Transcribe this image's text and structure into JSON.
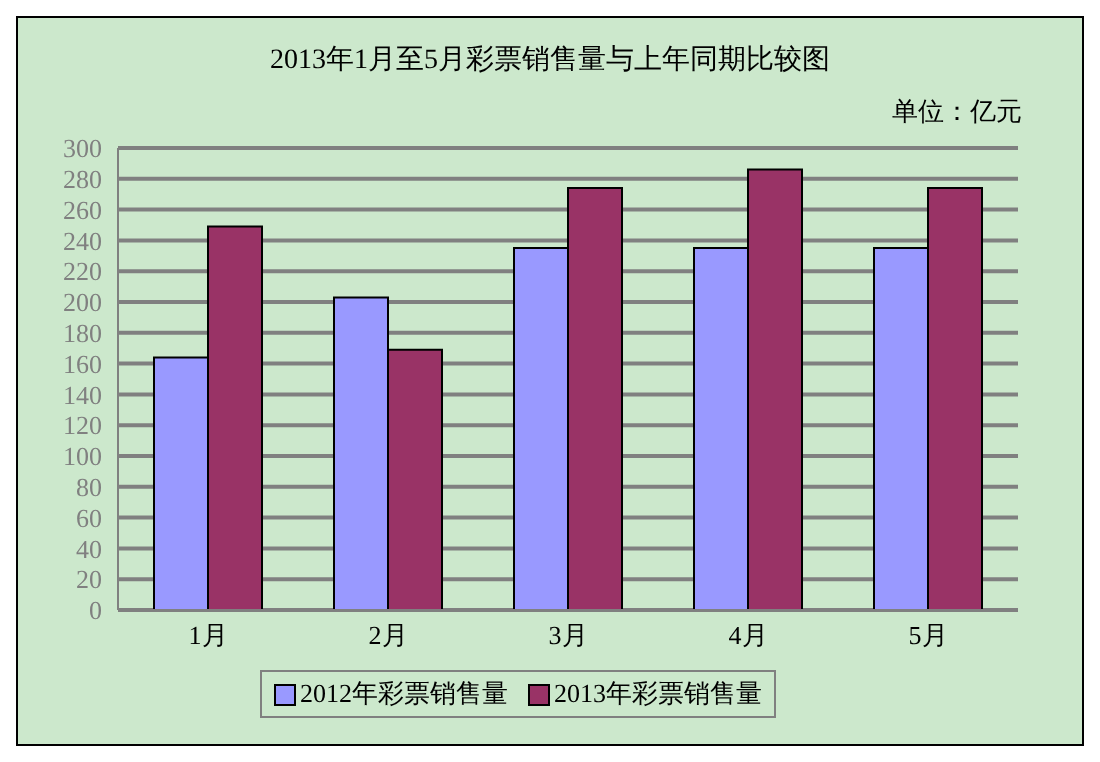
{
  "chart_data": {
    "type": "bar",
    "title": "2013年1月至5月彩票销售量与上年同期比较图",
    "subtitle": "单位：亿元",
    "categories": [
      "1月",
      "2月",
      "3月",
      "4月",
      "5月"
    ],
    "series": [
      {
        "name": "2012年彩票销售量",
        "color": "#9999ff",
        "values": [
          164,
          203,
          235,
          235,
          235
        ]
      },
      {
        "name": "2013年彩票销售量",
        "color": "#993366",
        "values": [
          249,
          169,
          274,
          286,
          274
        ]
      }
    ],
    "ylim": [
      0,
      300
    ],
    "yticks": [
      0,
      20,
      40,
      60,
      80,
      100,
      120,
      140,
      160,
      180,
      200,
      220,
      240,
      260,
      280,
      300
    ],
    "grid": "y",
    "legend": "bottom"
  }
}
